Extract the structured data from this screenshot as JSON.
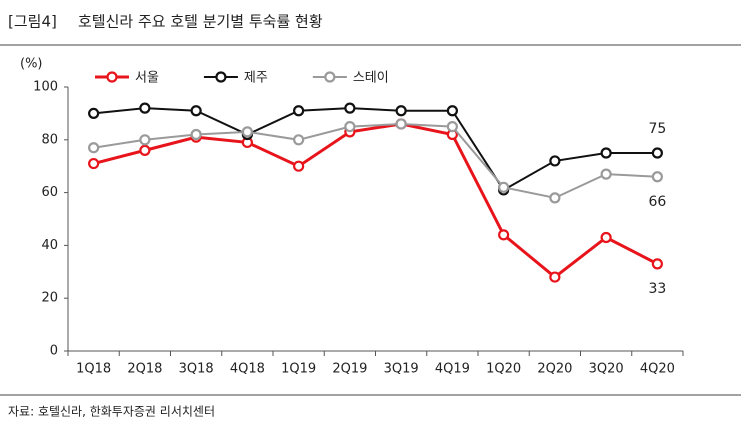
{
  "chart_data": {
    "type": "line",
    "figure_label": "[그림4]",
    "title": "호텔신라 주요 호텔 분기별 투숙률 현황",
    "y_label": "(%)",
    "source": "자료: 호텔신라, 한화투자증권 리서치센터",
    "categories": [
      "1Q18",
      "2Q18",
      "3Q18",
      "4Q18",
      "1Q19",
      "2Q19",
      "3Q19",
      "4Q19",
      "1Q20",
      "2Q20",
      "3Q20",
      "4Q20"
    ],
    "series": [
      {
        "name": "서울",
        "color": "#e8141b",
        "values": [
          71,
          76,
          81,
          79,
          70,
          83,
          86,
          82,
          44,
          28,
          43,
          33
        ]
      },
      {
        "name": "제주",
        "color": "#111111",
        "values": [
          90,
          92,
          91,
          82,
          91,
          92,
          91,
          91,
          61,
          72,
          75,
          75
        ]
      },
      {
        "name": "스테이",
        "color": "#9a9a9a",
        "values": [
          77,
          80,
          82,
          83,
          80,
          85,
          86,
          85,
          62,
          58,
          67,
          66
        ]
      }
    ],
    "ylim": [
      0,
      100
    ],
    "yticks": [
      0,
      20,
      40,
      60,
      80,
      100
    ],
    "grid": false
  }
}
